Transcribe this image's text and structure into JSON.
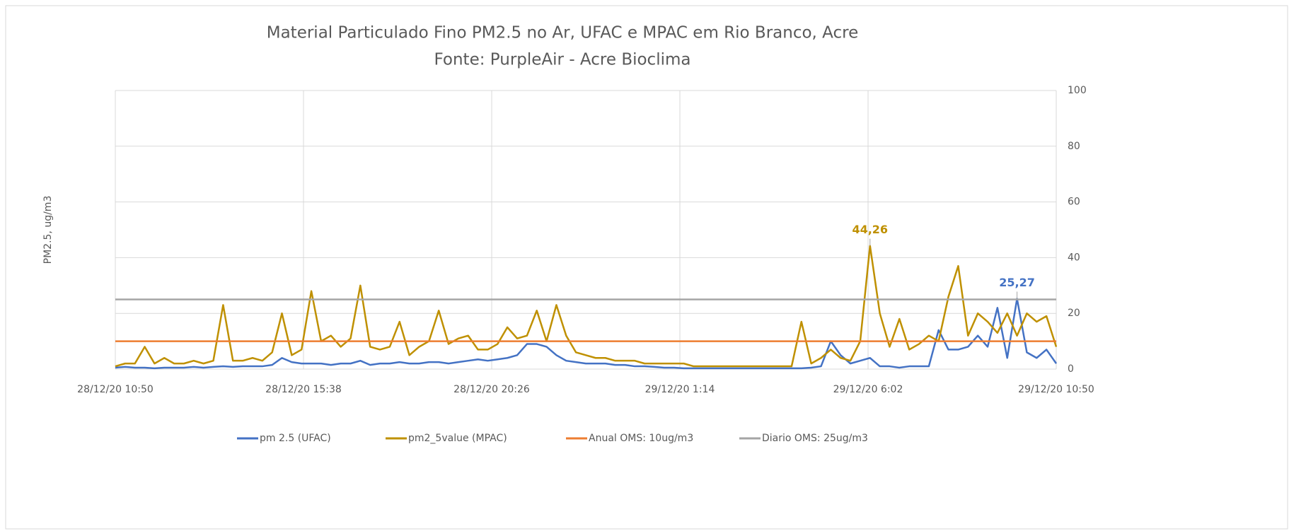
{
  "chart_data": {
    "type": "line",
    "title": "Material Particulado Fino PM2.5 no Ar,  UFAC e  MPAC em Rio Branco, Acre",
    "subtitle": "Fonte: PurpleAir - Acre Bioclima",
    "y_label": "PM2.5, ug/m3",
    "x": [
      "28/12/20 10:50",
      "28/12/20 11:05",
      "28/12/20 11:20",
      "28/12/20 11:35",
      "28/12/20 11:50",
      "28/12/20 12:05",
      "28/12/20 12:20",
      "28/12/20 12:35",
      "28/12/20 12:50",
      "28/12/20 13:05",
      "28/12/20 13:20",
      "28/12/20 13:35",
      "28/12/20 13:50",
      "28/12/20 14:05",
      "28/12/20 14:20",
      "28/12/20 14:35",
      "28/12/20 14:50",
      "28/12/20 15:05",
      "28/12/20 15:20",
      "28/12/20 15:35",
      "28/12/20 15:50",
      "28/12/20 16:05",
      "28/12/20 16:20",
      "28/12/20 16:35",
      "28/12/20 16:50",
      "28/12/20 17:05",
      "28/12/20 17:20",
      "28/12/20 17:35",
      "28/12/20 17:50",
      "28/12/20 18:05",
      "28/12/20 18:20",
      "28/12/20 18:35",
      "28/12/20 18:50",
      "28/12/20 19:05",
      "28/12/20 19:20",
      "28/12/20 19:35",
      "28/12/20 19:50",
      "28/12/20 20:05",
      "28/12/20 20:20",
      "28/12/20 20:35",
      "28/12/20 20:50",
      "28/12/20 21:05",
      "28/12/20 21:20",
      "28/12/20 21:35",
      "28/12/20 21:50",
      "28/12/20 22:05",
      "28/12/20 22:20",
      "28/12/20 22:35",
      "28/12/20 22:50",
      "28/12/20 23:05",
      "28/12/20 23:20",
      "28/12/20 23:35",
      "28/12/20 23:50",
      "29/12/20 0:05",
      "29/12/20 0:20",
      "29/12/20 0:35",
      "29/12/20 0:50",
      "29/12/20 1:05",
      "29/12/20 1:20",
      "29/12/20 1:35",
      "29/12/20 1:50",
      "29/12/20 2:05",
      "29/12/20 2:20",
      "29/12/20 2:35",
      "29/12/20 2:50",
      "29/12/20 3:05",
      "29/12/20 3:20",
      "29/12/20 3:35",
      "29/12/20 3:50",
      "29/12/20 4:05",
      "29/12/20 4:20",
      "29/12/20 4:35",
      "29/12/20 4:50",
      "29/12/20 5:05",
      "29/12/20 5:20",
      "29/12/20 5:35",
      "29/12/20 5:50",
      "29/12/20 6:05",
      "29/12/20 6:20",
      "29/12/20 6:35",
      "29/12/20 6:50",
      "29/12/20 7:05",
      "29/12/20 7:20",
      "29/12/20 7:35",
      "29/12/20 7:50",
      "29/12/20 8:05",
      "29/12/20 8:20",
      "29/12/20 8:35",
      "29/12/20 8:50",
      "29/12/20 9:05",
      "29/12/20 9:20",
      "29/12/20 9:35",
      "29/12/20 9:50",
      "29/12/20 10:05",
      "29/12/20 10:20",
      "29/12/20 10:35",
      "29/12/20 10:50"
    ],
    "xlim": [
      "28/12/20 10:50",
      "29/12/20 10:50"
    ],
    "xticks": [
      "28/12/20 10:50",
      "28/12/20 15:38",
      "28/12/20 20:26",
      "29/12/20 1:14",
      "29/12/20 6:02",
      "29/12/20 10:50"
    ],
    "ylim": [
      0,
      100
    ],
    "yticks": [
      0,
      20,
      40,
      60,
      80,
      100
    ],
    "y_axis_side": "right",
    "grid": true,
    "legend": "bottom",
    "series": [
      {
        "name": "pm 2.5 (UFAC)",
        "color": "#4472c4",
        "values": [
          0.5,
          0.8,
          0.5,
          0.5,
          0.3,
          0.5,
          0.5,
          0.5,
          0.8,
          0.5,
          0.8,
          1,
          0.8,
          1,
          1,
          1,
          1.5,
          4,
          2.5,
          2,
          2,
          2,
          1.5,
          2,
          2,
          3,
          1.5,
          2,
          2,
          2.5,
          2,
          2,
          2.5,
          2.5,
          2,
          2.5,
          3,
          3.5,
          3,
          3.5,
          4,
          5,
          9,
          9,
          8,
          5,
          3,
          2.5,
          2,
          2,
          2,
          1.5,
          1.5,
          1,
          1,
          0.8,
          0.5,
          0.5,
          0.3,
          0.3,
          0.3,
          0.3,
          0.3,
          0.3,
          0.3,
          0.3,
          0.3,
          0.3,
          0.3,
          0.3,
          0.3,
          0.5,
          1,
          10,
          5,
          2,
          3,
          4,
          1,
          1,
          0.5,
          1,
          1,
          1,
          14,
          7,
          7,
          8,
          12,
          8,
          22,
          4,
          25.27,
          6,
          4,
          7,
          2
        ],
        "value_labels": [
          null,
          null,
          null,
          null,
          null,
          null,
          null,
          null,
          null,
          null,
          null,
          null,
          null,
          null,
          null,
          null,
          null,
          null,
          null,
          null,
          null,
          null,
          null,
          null,
          null,
          null,
          null,
          null,
          null,
          null,
          null,
          null,
          null,
          null,
          null,
          null,
          null,
          null,
          null,
          null,
          null,
          null,
          null,
          null,
          null,
          null,
          null,
          null,
          null,
          null,
          null,
          null,
          null,
          null,
          null,
          null,
          null,
          null,
          null,
          null,
          null,
          null,
          null,
          null,
          null,
          null,
          null,
          null,
          null,
          null,
          null,
          null,
          null,
          null,
          null,
          null,
          null,
          null,
          null,
          null,
          null,
          null,
          null,
          null,
          null,
          null,
          null,
          null,
          null,
          null,
          null,
          null,
          "25,27",
          null,
          null,
          null,
          null
        ]
      },
      {
        "name": "pm2_5value (MPAC)",
        "color": "#bf9000",
        "values": [
          1,
          2,
          2,
          8,
          2,
          4,
          2,
          2,
          3,
          2,
          3,
          23,
          3,
          3,
          4,
          3,
          6,
          20,
          5,
          7,
          28,
          10,
          12,
          8,
          11,
          30,
          8,
          7,
          8,
          17,
          5,
          8,
          10,
          21,
          9,
          11,
          12,
          7,
          7,
          9,
          15,
          11,
          12,
          21,
          10,
          23,
          12,
          6,
          5,
          4,
          4,
          3,
          3,
          3,
          2,
          2,
          2,
          2,
          2,
          1,
          1,
          1,
          1,
          1,
          1,
          1,
          1,
          1,
          1,
          1,
          17,
          2,
          4,
          7,
          4,
          3,
          10,
          44.26,
          20,
          8,
          18,
          7,
          9,
          12,
          10,
          26,
          37,
          12,
          20,
          17,
          13,
          20,
          12,
          20,
          17,
          19,
          8
        ],
        "value_labels": [
          null,
          null,
          null,
          null,
          null,
          null,
          null,
          null,
          null,
          null,
          null,
          null,
          null,
          null,
          null,
          null,
          null,
          null,
          null,
          null,
          null,
          null,
          null,
          null,
          null,
          null,
          null,
          null,
          null,
          null,
          null,
          null,
          null,
          null,
          null,
          null,
          null,
          null,
          null,
          null,
          null,
          null,
          null,
          null,
          null,
          null,
          null,
          null,
          null,
          null,
          null,
          null,
          null,
          null,
          null,
          null,
          null,
          null,
          null,
          null,
          null,
          null,
          null,
          null,
          null,
          null,
          null,
          null,
          null,
          null,
          null,
          null,
          null,
          null,
          null,
          null,
          null,
          "44,26",
          null,
          null,
          null,
          null,
          null,
          null,
          null,
          null,
          null,
          null,
          null,
          null,
          null,
          null,
          null,
          null,
          null,
          null,
          null
        ]
      },
      {
        "name": "Anual OMS: 10ug/m3",
        "color": "#ed7d31",
        "values": [
          10,
          10,
          10,
          10,
          10,
          10,
          10,
          10,
          10,
          10,
          10,
          10,
          10,
          10,
          10,
          10,
          10,
          10,
          10,
          10,
          10,
          10,
          10,
          10,
          10,
          10,
          10,
          10,
          10,
          10,
          10,
          10,
          10,
          10,
          10,
          10,
          10,
          10,
          10,
          10,
          10,
          10,
          10,
          10,
          10,
          10,
          10,
          10,
          10,
          10,
          10,
          10,
          10,
          10,
          10,
          10,
          10,
          10,
          10,
          10,
          10,
          10,
          10,
          10,
          10,
          10,
          10,
          10,
          10,
          10,
          10,
          10,
          10,
          10,
          10,
          10,
          10,
          10,
          10,
          10,
          10,
          10,
          10,
          10,
          10,
          10,
          10,
          10,
          10,
          10,
          10,
          10,
          10,
          10,
          10,
          10,
          10
        ]
      },
      {
        "name": "Diario OMS: 25ug/m3",
        "color": "#a5a5a5",
        "values": [
          25,
          25,
          25,
          25,
          25,
          25,
          25,
          25,
          25,
          25,
          25,
          25,
          25,
          25,
          25,
          25,
          25,
          25,
          25,
          25,
          25,
          25,
          25,
          25,
          25,
          25,
          25,
          25,
          25,
          25,
          25,
          25,
          25,
          25,
          25,
          25,
          25,
          25,
          25,
          25,
          25,
          25,
          25,
          25,
          25,
          25,
          25,
          25,
          25,
          25,
          25,
          25,
          25,
          25,
          25,
          25,
          25,
          25,
          25,
          25,
          25,
          25,
          25,
          25,
          25,
          25,
          25,
          25,
          25,
          25,
          25,
          25,
          25,
          25,
          25,
          25,
          25,
          25,
          25,
          25,
          25,
          25,
          25,
          25,
          25,
          25,
          25,
          25,
          25,
          25,
          25,
          25,
          25,
          25,
          25,
          25,
          25
        ]
      }
    ]
  }
}
